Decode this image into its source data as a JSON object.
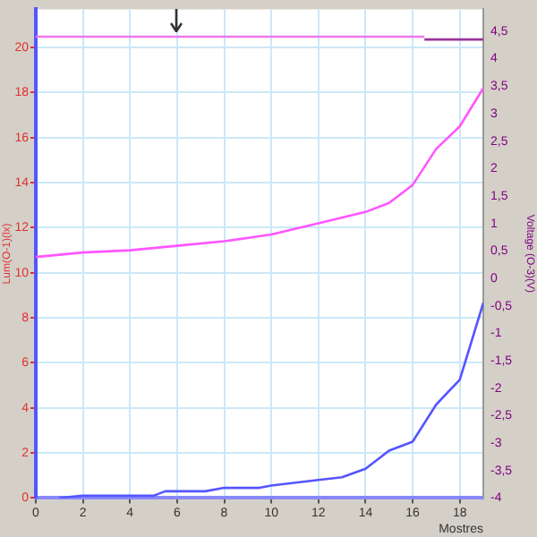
{
  "chart_data": {
    "type": "line",
    "xlabel": "Mostres",
    "ylabel": "Lum(O-1)(lx)",
    "y2label": "Voltage (O-3)(V)",
    "xlim": [
      0,
      19
    ],
    "xticks": [
      0,
      2,
      4,
      6,
      8,
      10,
      12,
      14,
      16,
      18
    ],
    "ylim": [
      0,
      21.7
    ],
    "yticks": [
      0,
      2,
      4,
      6,
      8,
      10,
      12,
      14,
      16,
      18,
      20
    ],
    "y2lim": [
      -4,
      4.9
    ],
    "y2ticks": [
      {
        "value": -4,
        "label": "-4"
      },
      {
        "value": -3.5,
        "label": "-3,5"
      },
      {
        "value": -3,
        "label": "-3"
      },
      {
        "value": -2.5,
        "label": "-2,5"
      },
      {
        "value": -2,
        "label": "-2"
      },
      {
        "value": -1.5,
        "label": "-1,5"
      },
      {
        "value": -1,
        "label": "-1"
      },
      {
        "value": -0.5,
        "label": "-0,5"
      },
      {
        "value": 0,
        "label": "0"
      },
      {
        "value": 0.5,
        "label": "0,5"
      },
      {
        "value": 1,
        "label": "1"
      },
      {
        "value": 1.5,
        "label": "1,5"
      },
      {
        "value": 2,
        "label": "2"
      },
      {
        "value": 2.5,
        "label": "2,5"
      },
      {
        "value": 3,
        "label": "3"
      },
      {
        "value": 3.5,
        "label": "3,5"
      },
      {
        "value": 4,
        "label": "4"
      },
      {
        "value": 4.5,
        "label": "4,5"
      }
    ],
    "grid": true,
    "legend": false,
    "marker": "none",
    "line_style": "solid",
    "series": [
      {
        "color": "#ff55ff",
        "x": [
          0,
          2,
          4,
          6,
          8,
          10,
          12,
          14,
          15,
          16,
          17,
          18,
          19
        ],
        "values": [
          10.7,
          10.9,
          11.0,
          11.2,
          11.4,
          11.7,
          12.2,
          12.7,
          13.1,
          13.9,
          15.5,
          16.5,
          18.2
        ]
      },
      {
        "color": "#5555ff",
        "x": [
          1,
          2,
          5,
          5.5,
          7.2,
          8,
          9.5,
          10,
          12,
          13,
          14,
          15,
          16,
          17,
          18,
          19
        ],
        "values": [
          0,
          0.1,
          0.1,
          0.3,
          0.3,
          0.45,
          0.45,
          0.55,
          0.8,
          0.92,
          1.3,
          2.1,
          2.5,
          4.15,
          5.25,
          8.66
        ]
      },
      {
        "color": "#ee77ee",
        "axis": "y2",
        "x": [
          0,
          16.5
        ],
        "values": [
          4.4,
          4.4
        ]
      },
      {
        "color": "#993399",
        "axis": "y2",
        "x": [
          16.5,
          19
        ],
        "values": [
          4.35,
          4.35
        ]
      }
    ]
  }
}
